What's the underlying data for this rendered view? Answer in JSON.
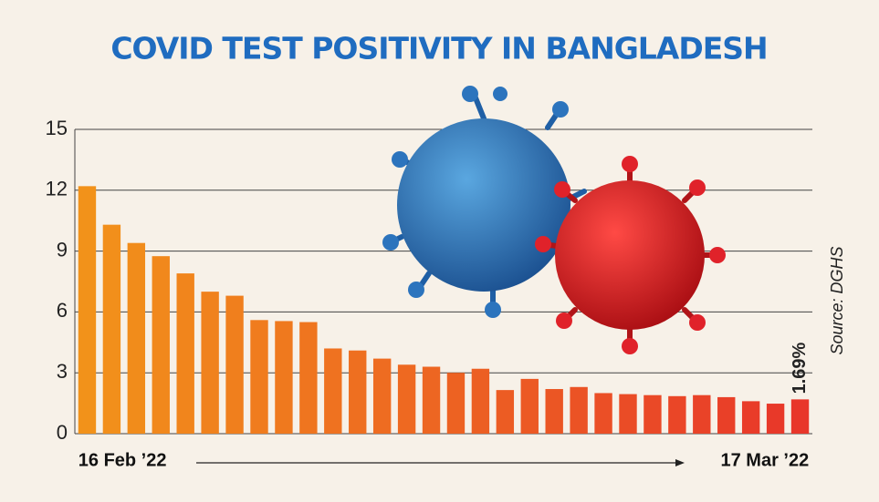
{
  "chart_data": {
    "type": "bar",
    "title": "COVID TEST POSITIVITY IN BANGLADESH",
    "annotation": "Source: DGHS",
    "categories": [
      "16 Feb ’22",
      null,
      null,
      null,
      null,
      null,
      null,
      null,
      null,
      null,
      null,
      null,
      null,
      null,
      null,
      null,
      null,
      null,
      null,
      null,
      null,
      null,
      null,
      null,
      null,
      null,
      null,
      null,
      null,
      "17 Mar ’22"
    ],
    "values": [
      12.2,
      10.3,
      9.4,
      8.75,
      7.9,
      7.0,
      6.8,
      5.6,
      5.55,
      5.5,
      4.2,
      4.1,
      3.7,
      3.4,
      3.3,
      3.0,
      3.2,
      2.15,
      2.7,
      2.2,
      2.3,
      2.0,
      1.95,
      1.9,
      1.85,
      1.9,
      1.8,
      1.6,
      1.48,
      1.69
    ],
    "value_labels": [
      null,
      null,
      null,
      null,
      null,
      null,
      null,
      null,
      null,
      null,
      null,
      null,
      null,
      null,
      null,
      null,
      null,
      null,
      null,
      null,
      null,
      null,
      null,
      null,
      null,
      null,
      null,
      null,
      null,
      "1.69%"
    ],
    "colors": [
      "#f2921a",
      "#e8362a"
    ],
    "ylim": [
      0,
      15
    ],
    "yticks": [
      0,
      3,
      6,
      9,
      12,
      15
    ],
    "grid": true
  }
}
